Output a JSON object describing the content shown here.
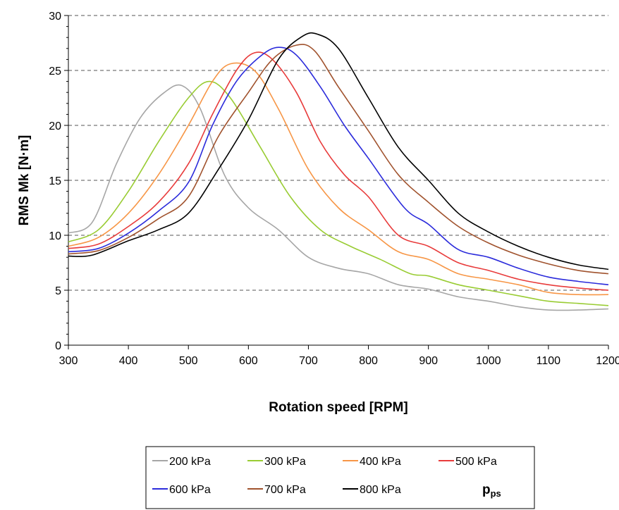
{
  "chart_data": {
    "type": "line",
    "title": "",
    "xlabel": "Rotation speed [RPM]",
    "ylabel": "RMS Mk [N·m]",
    "xlim": [
      300,
      1200
    ],
    "ylim": [
      0,
      30
    ],
    "x_ticks": [
      "300",
      "400",
      "500",
      "600",
      "700",
      "800",
      "900",
      "1000",
      "1100",
      "1200"
    ],
    "y_ticks": [
      "0",
      "5",
      "10",
      "15",
      "20",
      "25",
      "30"
    ],
    "grid": "horizontal-dashed",
    "legend": {
      "placement": "bottom",
      "title_main": "p",
      "title_sub": "ps"
    },
    "series": [
      {
        "name": "200 kPa",
        "color": "#a6a6a6",
        "x": [
          300,
          340,
          380,
          420,
          460,
          490,
          520,
          560,
          600,
          650,
          700,
          750,
          800,
          850,
          900,
          950,
          1000,
          1050,
          1100,
          1150,
          1200
        ],
        "y": [
          10.2,
          11.2,
          16.5,
          20.7,
          23.0,
          23.6,
          21.5,
          15.5,
          12.5,
          10.5,
          8.0,
          7.0,
          6.5,
          5.5,
          5.1,
          4.4,
          4.0,
          3.5,
          3.2,
          3.2,
          3.3
        ]
      },
      {
        "name": "300 kPa",
        "color": "#99cc33",
        "x": [
          300,
          350,
          400,
          450,
          500,
          535,
          570,
          620,
          670,
          720,
          770,
          820,
          870,
          900,
          950,
          1000,
          1050,
          1100,
          1150,
          1200
        ],
        "y": [
          9.4,
          10.5,
          14.0,
          18.5,
          22.5,
          24.0,
          22.5,
          18.0,
          13.5,
          10.5,
          9.0,
          7.8,
          6.5,
          6.3,
          5.5,
          5.0,
          4.5,
          4.0,
          3.8,
          3.6
        ]
      },
      {
        "name": "400 kPa",
        "color": "#f79646",
        "x": [
          300,
          350,
          400,
          450,
          500,
          540,
          570,
          610,
          650,
          700,
          750,
          800,
          850,
          900,
          950,
          1000,
          1050,
          1100,
          1150,
          1200
        ],
        "y": [
          9.0,
          9.8,
          12.0,
          15.5,
          20.0,
          24.0,
          25.6,
          25.0,
          21.5,
          16.0,
          12.5,
          10.5,
          8.5,
          7.8,
          6.5,
          6.0,
          5.5,
          4.8,
          4.6,
          4.6
        ]
      },
      {
        "name": "500 kPa",
        "color": "#e83b3b",
        "x": [
          300,
          350,
          400,
          450,
          500,
          540,
          580,
          610,
          640,
          680,
          720,
          760,
          800,
          850,
          900,
          950,
          1000,
          1050,
          1100,
          1150,
          1200
        ],
        "y": [
          8.8,
          9.2,
          10.8,
          13.0,
          16.5,
          21.0,
          25.0,
          26.6,
          26.0,
          23.0,
          18.5,
          15.5,
          13.5,
          10.0,
          9.0,
          7.5,
          6.8,
          6.0,
          5.5,
          5.2,
          5.0
        ]
      },
      {
        "name": "600 kPa",
        "color": "#2b2bdb",
        "x": [
          300,
          350,
          400,
          450,
          500,
          540,
          580,
          620,
          650,
          680,
          720,
          760,
          800,
          860,
          900,
          950,
          1000,
          1050,
          1100,
          1150,
          1200
        ],
        "y": [
          8.5,
          8.8,
          10.2,
          12.2,
          14.8,
          20.0,
          24.0,
          26.3,
          27.1,
          26.4,
          23.5,
          20.0,
          17.0,
          12.5,
          11.0,
          8.7,
          8.0,
          7.0,
          6.2,
          5.8,
          5.5
        ]
      },
      {
        "name": "700 kPa",
        "color": "#a0522d",
        "x": [
          300,
          350,
          400,
          450,
          500,
          550,
          600,
          640,
          680,
          710,
          750,
          800,
          850,
          900,
          950,
          1000,
          1050,
          1100,
          1150,
          1200
        ],
        "y": [
          8.3,
          8.6,
          9.8,
          11.5,
          13.5,
          19.0,
          23.0,
          26.0,
          27.3,
          26.8,
          23.5,
          19.5,
          15.5,
          13.0,
          10.8,
          9.3,
          8.2,
          7.4,
          6.8,
          6.5
        ]
      },
      {
        "name": "800 kPa",
        "color": "#000000",
        "x": [
          300,
          340,
          400,
          450,
          500,
          550,
          600,
          650,
          690,
          715,
          750,
          800,
          850,
          900,
          950,
          1000,
          1050,
          1100,
          1150,
          1200
        ],
        "y": [
          8.1,
          8.2,
          9.5,
          10.5,
          12.0,
          16.0,
          20.5,
          26.0,
          28.1,
          28.3,
          27.0,
          22.5,
          18.0,
          15.0,
          12.0,
          10.3,
          9.0,
          8.0,
          7.3,
          6.9
        ]
      }
    ]
  }
}
